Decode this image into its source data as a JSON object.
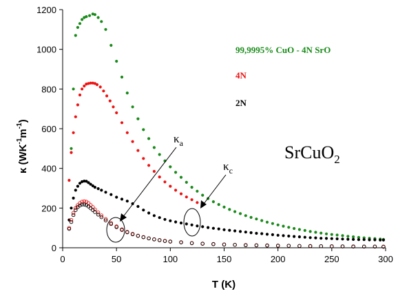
{
  "chart_data": {
    "type": "scatter",
    "title": "",
    "xlabel": "T (K)",
    "ylabel_main": "κ (WK",
    "ylabel_sup1": "-1",
    "ylabel_mid": "m",
    "ylabel_sup2": "-1",
    "ylabel_end": ")",
    "xlim": [
      0,
      300
    ],
    "ylim": [
      0,
      1200
    ],
    "x_ticks": [
      0,
      50,
      100,
      150,
      200,
      250,
      300
    ],
    "y_ticks": [
      0,
      200,
      400,
      600,
      800,
      1000,
      1200
    ],
    "grid": false,
    "legend_position": "top-right",
    "annotation_text": {
      "compound_base": "SrCuO",
      "compound_sub": "2",
      "kappa_a_base": "κ",
      "kappa_a_sub": "a",
      "kappa_c_base": "κ",
      "kappa_c_sub": "c"
    },
    "series": [
      {
        "name": "99,9995% CuO - 4N SrO",
        "color": "#1a8a1a",
        "marker": "filled",
        "points": [
          [
            8,
            500
          ],
          [
            10,
            800
          ],
          [
            12,
            1070
          ],
          [
            14,
            1110
          ],
          [
            16,
            1130
          ],
          [
            18,
            1150
          ],
          [
            20,
            1160
          ],
          [
            22,
            1165
          ],
          [
            25,
            1170
          ],
          [
            28,
            1178
          ],
          [
            30,
            1175
          ],
          [
            33,
            1160
          ],
          [
            36,
            1140
          ],
          [
            40,
            1100
          ],
          [
            45,
            1020
          ],
          [
            50,
            940
          ],
          [
            55,
            860
          ],
          [
            60,
            780
          ],
          [
            65,
            710
          ],
          [
            70,
            650
          ],
          [
            75,
            595
          ],
          [
            80,
            550
          ],
          [
            85,
            505
          ],
          [
            90,
            470
          ],
          [
            95,
            438
          ],
          [
            100,
            408
          ],
          [
            105,
            380
          ],
          [
            110,
            355
          ],
          [
            115,
            330
          ],
          [
            120,
            305
          ],
          [
            125,
            285
          ],
          [
            130,
            265
          ],
          [
            135,
            248
          ],
          [
            140,
            232
          ],
          [
            145,
            218
          ],
          [
            150,
            205
          ],
          [
            155,
            193
          ],
          [
            160,
            182
          ],
          [
            165,
            172
          ],
          [
            170,
            162
          ],
          [
            175,
            153
          ],
          [
            180,
            145
          ],
          [
            185,
            137
          ],
          [
            190,
            129
          ],
          [
            195,
            122
          ],
          [
            200,
            115
          ],
          [
            205,
            109
          ],
          [
            210,
            103
          ],
          [
            215,
            97
          ],
          [
            220,
            92
          ],
          [
            225,
            87
          ],
          [
            230,
            82
          ],
          [
            235,
            78
          ],
          [
            240,
            74
          ],
          [
            245,
            70
          ],
          [
            250,
            67
          ],
          [
            255,
            64
          ],
          [
            260,
            61
          ],
          [
            265,
            58
          ],
          [
            270,
            55
          ],
          [
            275,
            52
          ],
          [
            280,
            50
          ],
          [
            285,
            48
          ],
          [
            290,
            46
          ],
          [
            295,
            44
          ],
          [
            298,
            42
          ]
        ]
      },
      {
        "name": "4N",
        "color": "#ee1111",
        "marker": "filled",
        "points": [
          [
            6,
            340
          ],
          [
            8,
            480
          ],
          [
            10,
            580
          ],
          [
            12,
            660
          ],
          [
            14,
            720
          ],
          [
            16,
            770
          ],
          [
            18,
            800
          ],
          [
            20,
            815
          ],
          [
            22,
            825
          ],
          [
            24,
            828
          ],
          [
            26,
            830
          ],
          [
            28,
            830
          ],
          [
            30,
            828
          ],
          [
            32,
            822
          ],
          [
            35,
            810
          ],
          [
            38,
            790
          ],
          [
            41,
            765
          ],
          [
            44,
            740
          ],
          [
            47,
            710
          ],
          [
            50,
            680
          ],
          [
            55,
            630
          ],
          [
            60,
            580
          ],
          [
            65,
            535
          ],
          [
            70,
            490
          ],
          [
            75,
            450
          ],
          [
            80,
            415
          ],
          [
            85,
            385
          ],
          [
            90,
            357
          ],
          [
            95,
            332
          ],
          [
            100,
            310
          ],
          [
            105,
            290
          ],
          [
            110,
            272
          ],
          [
            115,
            256
          ],
          [
            120,
            242
          ],
          [
            125,
            228
          ],
          [
            130,
            216
          ]
        ]
      },
      {
        "name": "2N",
        "color": "#000000",
        "marker": "filled",
        "points": [
          [
            6,
            140
          ],
          [
            8,
            200
          ],
          [
            10,
            250
          ],
          [
            12,
            290
          ],
          [
            14,
            310
          ],
          [
            16,
            325
          ],
          [
            18,
            333
          ],
          [
            20,
            336
          ],
          [
            22,
            335
          ],
          [
            24,
            328
          ],
          [
            26,
            320
          ],
          [
            28,
            312
          ],
          [
            30,
            305
          ],
          [
            33,
            298
          ],
          [
            36,
            290
          ],
          [
            40,
            280
          ],
          [
            45,
            268
          ],
          [
            50,
            255
          ],
          [
            55,
            245
          ],
          [
            60,
            235
          ],
          [
            65,
            222
          ],
          [
            70,
            208
          ],
          [
            75,
            190
          ],
          [
            80,
            175
          ],
          [
            85,
            162
          ],
          [
            90,
            152
          ],
          [
            95,
            143
          ],
          [
            100,
            136
          ],
          [
            105,
            130
          ],
          [
            110,
            125
          ],
          [
            115,
            120
          ],
          [
            120,
            115
          ],
          [
            125,
            110
          ],
          [
            130,
            106
          ],
          [
            135,
            102
          ],
          [
            140,
            98
          ],
          [
            145,
            95
          ],
          [
            150,
            91
          ],
          [
            155,
            88
          ],
          [
            160,
            85
          ],
          [
            165,
            82
          ],
          [
            170,
            79
          ],
          [
            175,
            76
          ],
          [
            180,
            73
          ],
          [
            185,
            71
          ],
          [
            190,
            68
          ],
          [
            195,
            66
          ],
          [
            200,
            63
          ],
          [
            205,
            61
          ],
          [
            210,
            59
          ],
          [
            215,
            57
          ],
          [
            220,
            55
          ],
          [
            225,
            53
          ],
          [
            230,
            51
          ],
          [
            235,
            50
          ],
          [
            240,
            48
          ],
          [
            245,
            47
          ],
          [
            250,
            46
          ],
          [
            255,
            45
          ],
          [
            260,
            44
          ],
          [
            265,
            43
          ],
          [
            270,
            42
          ],
          [
            275,
            41
          ],
          [
            280,
            41
          ],
          [
            285,
            40
          ],
          [
            290,
            40
          ],
          [
            295,
            39
          ],
          [
            298,
            39
          ]
        ]
      },
      {
        "name": "κa 4N",
        "color": "#ee1111",
        "marker": "open",
        "points": [
          [
            6,
            100
          ],
          [
            8,
            140
          ],
          [
            10,
            175
          ],
          [
            12,
            200
          ],
          [
            14,
            215
          ],
          [
            16,
            225
          ],
          [
            18,
            232
          ],
          [
            20,
            234
          ],
          [
            22,
            232
          ],
          [
            24,
            225
          ],
          [
            26,
            215
          ],
          [
            28,
            205
          ],
          [
            30,
            193
          ],
          [
            33,
            178
          ],
          [
            36,
            163
          ],
          [
            40,
            145
          ],
          [
            45,
            125
          ],
          [
            50,
            108
          ],
          [
            55,
            93
          ],
          [
            60,
            80
          ],
          [
            65,
            70
          ],
          [
            70,
            61
          ],
          [
            75,
            54
          ],
          [
            80,
            48
          ],
          [
            85,
            43
          ],
          [
            90,
            39
          ],
          [
            95,
            35
          ],
          [
            100,
            32
          ],
          [
            110,
            28
          ],
          [
            120,
            24
          ],
          [
            130,
            21
          ],
          [
            140,
            19
          ],
          [
            150,
            17
          ],
          [
            160,
            15
          ],
          [
            170,
            14
          ],
          [
            180,
            13
          ],
          [
            190,
            12
          ],
          [
            200,
            11
          ],
          [
            210,
            10
          ],
          [
            220,
            9
          ],
          [
            230,
            9
          ],
          [
            240,
            8
          ],
          [
            250,
            8
          ],
          [
            260,
            7
          ],
          [
            270,
            7
          ],
          [
            280,
            6
          ],
          [
            290,
            6
          ],
          [
            298,
            6
          ]
        ]
      },
      {
        "name": "κa 2N",
        "color": "#000000",
        "marker": "open",
        "points": [
          [
            6,
            95
          ],
          [
            8,
            130
          ],
          [
            10,
            165
          ],
          [
            12,
            190
          ],
          [
            14,
            205
          ],
          [
            16,
            213
          ],
          [
            18,
            218
          ],
          [
            20,
            218
          ],
          [
            22,
            215
          ],
          [
            24,
            208
          ],
          [
            26,
            199
          ],
          [
            28,
            190
          ],
          [
            30,
            180
          ],
          [
            33,
            167
          ],
          [
            36,
            154
          ],
          [
            40,
            138
          ],
          [
            45,
            120
          ],
          [
            50,
            104
          ],
          [
            55,
            90
          ],
          [
            60,
            78
          ],
          [
            65,
            68
          ],
          [
            70,
            60
          ],
          [
            75,
            53
          ],
          [
            80,
            47
          ],
          [
            85,
            42
          ],
          [
            90,
            38
          ],
          [
            95,
            34
          ],
          [
            100,
            31
          ],
          [
            110,
            27
          ],
          [
            120,
            23
          ],
          [
            130,
            20
          ],
          [
            140,
            18
          ],
          [
            150,
            16
          ],
          [
            160,
            15
          ],
          [
            170,
            13
          ],
          [
            180,
            12
          ],
          [
            190,
            11
          ],
          [
            200,
            10
          ],
          [
            210,
            10
          ],
          [
            220,
            9
          ],
          [
            230,
            8
          ],
          [
            240,
            8
          ],
          [
            250,
            7
          ],
          [
            260,
            7
          ],
          [
            270,
            6
          ],
          [
            280,
            6
          ],
          [
            290,
            6
          ],
          [
            298,
            5
          ]
        ]
      }
    ]
  }
}
